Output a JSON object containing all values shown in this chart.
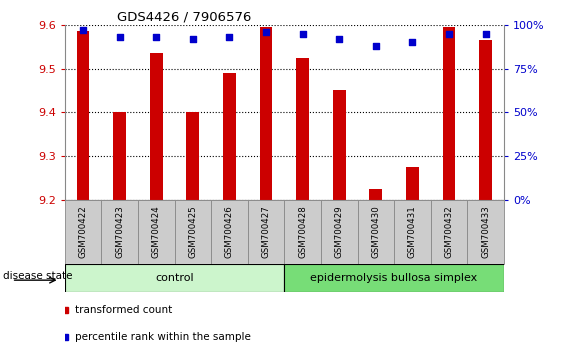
{
  "title": "GDS4426 / 7906576",
  "samples": [
    "GSM700422",
    "GSM700423",
    "GSM700424",
    "GSM700425",
    "GSM700426",
    "GSM700427",
    "GSM700428",
    "GSM700429",
    "GSM700430",
    "GSM700431",
    "GSM700432",
    "GSM700433"
  ],
  "bar_values": [
    9.585,
    9.4,
    9.535,
    9.4,
    9.49,
    9.595,
    9.525,
    9.45,
    9.225,
    9.275,
    9.595,
    9.565
  ],
  "percentile_values": [
    97,
    93,
    93,
    92,
    93,
    96,
    95,
    92,
    88,
    90,
    95,
    95
  ],
  "bar_color": "#cc0000",
  "percentile_color": "#0000cc",
  "ylim_left": [
    9.2,
    9.6
  ],
  "ylim_right": [
    0,
    100
  ],
  "yticks_left": [
    9.2,
    9.3,
    9.4,
    9.5,
    9.6
  ],
  "yticks_right": [
    0,
    25,
    50,
    75,
    100
  ],
  "ytick_labels_right": [
    "0%",
    "25%",
    "50%",
    "75%",
    "100%"
  ],
  "groups": [
    {
      "label": "control",
      "start": 0,
      "end": 5,
      "color": "#ccf5cc"
    },
    {
      "label": "epidermolysis bullosa simplex",
      "start": 6,
      "end": 11,
      "color": "#77dd77"
    }
  ],
  "group_label": "disease state",
  "legend_items": [
    {
      "label": "transformed count",
      "color": "#cc0000"
    },
    {
      "label": "percentile rank within the sample",
      "color": "#0000cc"
    }
  ],
  "bar_width": 0.35,
  "background_color": "#ffffff",
  "tick_color_left": "#cc0000",
  "tick_color_right": "#0000cc",
  "sample_box_color": "#cccccc",
  "sample_box_edge": "#888888"
}
